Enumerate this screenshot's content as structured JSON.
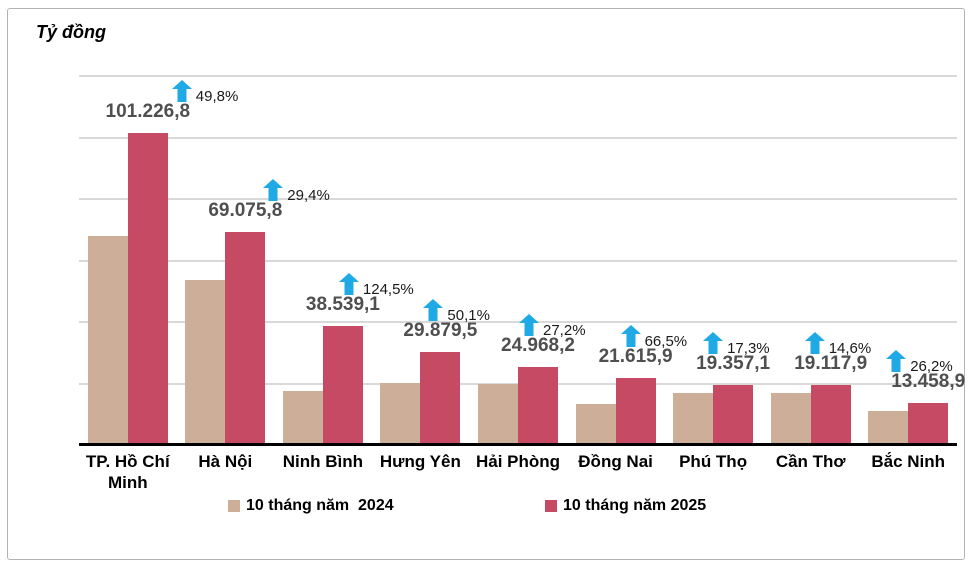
{
  "title": "Tỷ đồng",
  "legend": {
    "items": [
      {
        "label": "10 tháng năm  2024",
        "color": "#ccae99"
      },
      {
        "label": "10 tháng năm 2025",
        "color": "#c64a63"
      }
    ]
  },
  "colors": {
    "bar_2024": "#ccae99",
    "bar_2025": "#c64a63",
    "arrow_blue": "#1fa9e5",
    "value_label_gray": "#4f4f4f",
    "gridline": "#d9d9d9",
    "axis": "#000000"
  },
  "chart_data": {
    "type": "bar",
    "title": "Tỷ đồng",
    "unit_label": "Tỷ đồng",
    "categories": [
      "TP. Hồ Chí Minh",
      "Hà Nội",
      "Ninh Bình",
      "Hưng Yên",
      "Hải Phòng",
      "Đồng Nai",
      "Phú Thọ",
      "Cần Thơ",
      "Bắc Ninh"
    ],
    "series": [
      {
        "name": "10 tháng năm  2024",
        "color": "#ccae99",
        "values": [
          67575,
          53382,
          17167,
          19906,
          19629,
          12983,
          16502,
          16682,
          10665
        ],
        "values_estimated_from_bar_heights": true
      },
      {
        "name": "10 tháng năm 2025",
        "color": "#c64a63",
        "values": [
          101226.8,
          69075.8,
          38539.1,
          29879.5,
          24968.2,
          21615.9,
          19357.1,
          19117.9,
          13458.9
        ],
        "labels": [
          "101.226,8",
          "69.075,8",
          "38.539,1",
          "29.879,5",
          "24.968,2",
          "21.615,9",
          "19.357,1",
          "19.117,9",
          "13.458,9"
        ]
      }
    ],
    "growth_labels": [
      "49,8%",
      "29,4%",
      "124,5%",
      "50,1%",
      "27,2%",
      "66,5%",
      "17,3%",
      "14,6%",
      "26,2%"
    ],
    "ylim": [
      0,
      120000
    ],
    "grid_step": 20000,
    "grid": true,
    "y_tick_labels_visible": false,
    "legend_position": "bottom"
  }
}
